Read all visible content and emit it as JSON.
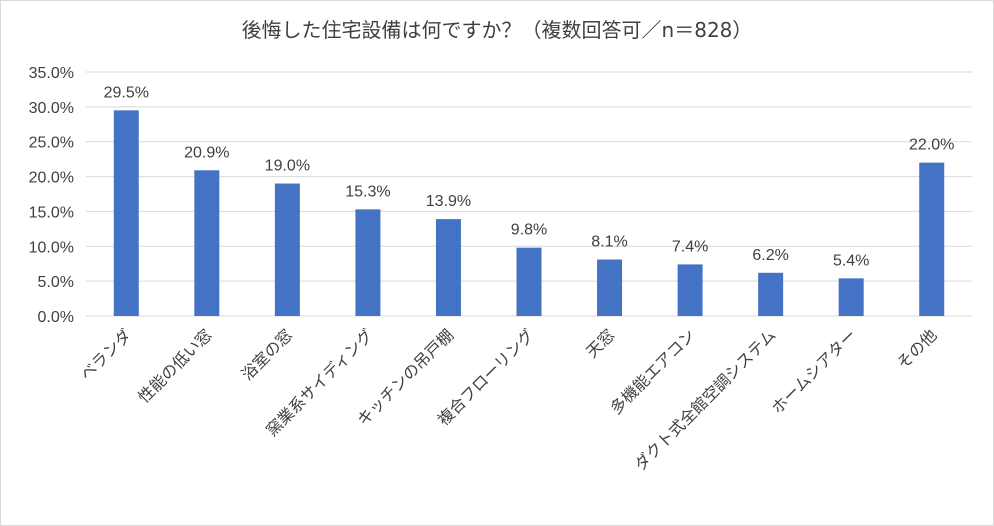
{
  "chart_data": {
    "type": "bar",
    "title": "後悔した住宅設備は何ですか？（複数回答可／n＝828）",
    "categories": [
      "ベランダ",
      "性能の低い窓",
      "浴室の窓",
      "窯業系サイディング",
      "キッチンの吊戸棚",
      "複合フローリング",
      "天窓",
      "多機能エアコン",
      "ダクト式全館空調システム",
      "ホームシアター",
      "その他"
    ],
    "values": [
      29.5,
      20.9,
      19.0,
      15.3,
      13.9,
      9.8,
      8.1,
      7.4,
      6.2,
      5.4,
      22.0
    ],
    "value_labels": [
      "29.5%",
      "20.9%",
      "19.0%",
      "15.3%",
      "13.9%",
      "9.8%",
      "8.1%",
      "7.4%",
      "6.2%",
      "5.4%",
      "22.0%"
    ],
    "ylim": [
      0,
      35
    ],
    "yticks": [
      0,
      5,
      10,
      15,
      20,
      25,
      30,
      35
    ],
    "ytick_labels": [
      "0.0%",
      "5.0%",
      "10.0%",
      "15.0%",
      "20.0%",
      "25.0%",
      "30.0%",
      "35.0%"
    ],
    "grid": true,
    "bar_color": "#4472c4",
    "grid_color": "#d9d9d9"
  }
}
